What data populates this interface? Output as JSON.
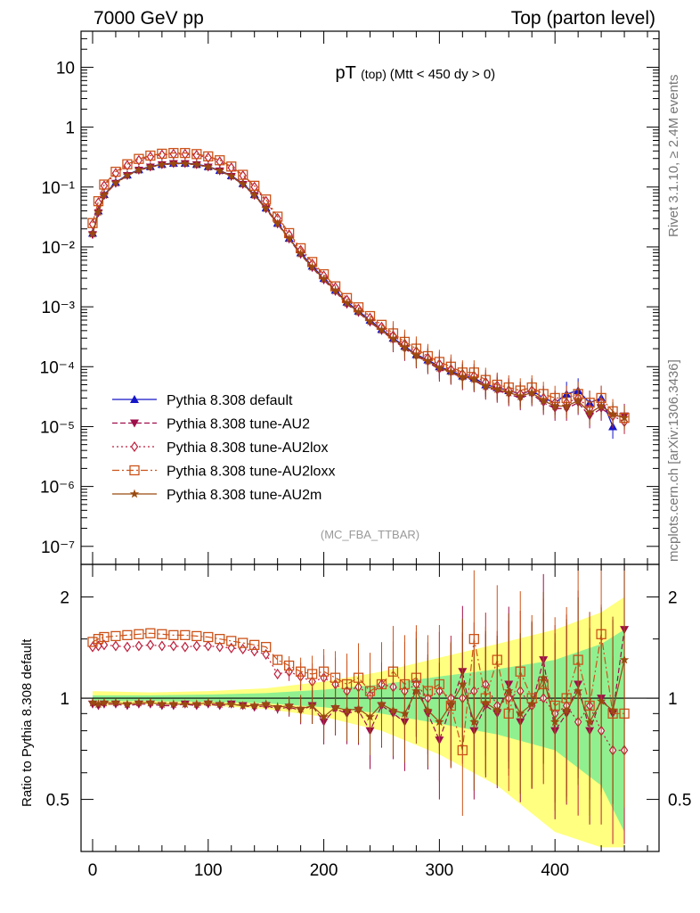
{
  "header": {
    "left": "7000 GeV pp",
    "right": "Top (parton level)"
  },
  "side_labels": {
    "rivet": "Rivet 3.1.10, ≥ 2.4M events",
    "mcplots": "mcplots.cern.ch [arXiv:1306.3436]"
  },
  "colors": {
    "default": "#1515c8",
    "AU2": "#9e0e4a",
    "AU2lox": "#bd1e3c",
    "AU2loxx": "#cc5319",
    "AU2m": "#9a4a10",
    "band_yellow": "#ffff80",
    "band_green": "#90f090"
  },
  "chart_data": [
    {
      "type": "line",
      "title_main": "pT",
      "title_paren": "(top)",
      "title_cond": "(Mtt < 450 dy > 0)",
      "watermark": "(MC_FBA_TTBAR)",
      "y_scale": "log",
      "ylim": [
        5e-08,
        40
      ],
      "xlim": [
        -10,
        490
      ],
      "y_ticks": [
        "10",
        "1",
        "10⁻¹",
        "10⁻²",
        "10⁻³",
        "10⁻⁴",
        "10⁻⁵",
        "10⁻⁶",
        "10⁻⁷"
      ],
      "legend": {
        "position": "bottom-left",
        "entries": [
          {
            "key": "default",
            "label": "Pythia 8.308 default",
            "marker": "triangle-up",
            "dash": "solid"
          },
          {
            "key": "AU2",
            "label": "Pythia 8.308 tune-AU2",
            "marker": "triangle-down",
            "dash": "dashed"
          },
          {
            "key": "AU2lox",
            "label": "Pythia 8.308 tune-AU2lox",
            "marker": "diamond",
            "dash": "dotted"
          },
          {
            "key": "AU2loxx",
            "label": "Pythia 8.308 tune-AU2loxx",
            "marker": "square",
            "dash": "dashdot"
          },
          {
            "key": "AU2m",
            "label": "Pythia 8.308 tune-AU2m",
            "marker": "star",
            "dash": "solid"
          }
        ]
      },
      "x": [
        0,
        5,
        10,
        20,
        30,
        40,
        50,
        60,
        70,
        80,
        90,
        100,
        110,
        120,
        130,
        140,
        150,
        160,
        170,
        180,
        190,
        200,
        210,
        220,
        230,
        240,
        250,
        260,
        270,
        280,
        290,
        300,
        310,
        320,
        330,
        340,
        350,
        360,
        370,
        380,
        390,
        400,
        410,
        420,
        430,
        440,
        450,
        460
      ],
      "series": [
        {
          "name": "Pythia 8.308 default",
          "key": "default",
          "values": [
            0.017,
            0.04,
            0.075,
            0.12,
            0.16,
            0.195,
            0.22,
            0.24,
            0.25,
            0.25,
            0.24,
            0.22,
            0.19,
            0.155,
            0.115,
            0.075,
            0.045,
            0.025,
            0.014,
            0.008,
            0.0048,
            0.003,
            0.0019,
            0.0012,
            0.00085,
            0.0006,
            0.00042,
            0.0003,
            0.00022,
            0.00016,
            0.00013,
            0.0001,
            8.5e-05,
            7e-05,
            6.5e-05,
            5e-05,
            4.5e-05,
            4e-05,
            3.5e-05,
            4e-05,
            3e-05,
            2.5e-05,
            3.5e-05,
            4e-05,
            2.5e-05,
            3e-05,
            1e-05,
            null
          ]
        },
        {
          "name": "Pythia 8.308 tune-AU2",
          "key": "AU2",
          "values": [
            0.016,
            0.037,
            0.072,
            0.115,
            0.155,
            0.19,
            0.215,
            0.235,
            0.245,
            0.245,
            0.235,
            0.215,
            0.185,
            0.15,
            0.11,
            0.072,
            0.043,
            0.024,
            0.0135,
            0.0075,
            0.0045,
            0.0028,
            0.0018,
            0.0011,
            0.0008,
            0.00055,
            0.0004,
            0.00028,
            0.0002,
            0.00015,
            0.00012,
            9e-05,
            8e-05,
            6.5e-05,
            6e-05,
            4.5e-05,
            4e-05,
            3.5e-05,
            3e-05,
            3.5e-05,
            2.5e-05,
            2e-05,
            2e-05,
            2.5e-05,
            1.5e-05,
            2e-05,
            1.5e-05,
            1.5e-05
          ]
        },
        {
          "name": "Pythia 8.308 tune-AU2lox",
          "key": "AU2lox",
          "values": [
            0.024,
            0.055,
            0.105,
            0.17,
            0.23,
            0.28,
            0.32,
            0.345,
            0.355,
            0.355,
            0.34,
            0.31,
            0.265,
            0.21,
            0.155,
            0.1,
            0.058,
            0.03,
            0.016,
            0.0088,
            0.0052,
            0.0033,
            0.0021,
            0.0013,
            0.00092,
            0.00065,
            0.00046,
            0.00033,
            0.00024,
            0.00018,
            0.00014,
            0.00011,
            9e-05,
            7.5e-05,
            7e-05,
            5.5e-05,
            4.8e-05,
            4e-05,
            3.5e-05,
            4e-05,
            3e-05,
            2.5e-05,
            2.5e-05,
            3e-05,
            2e-05,
            2.5e-05,
            1.5e-05,
            1.2e-05
          ]
        },
        {
          "name": "Pythia 8.308 tune-AU2loxx",
          "key": "AU2loxx",
          "values": [
            0.025,
            0.058,
            0.11,
            0.18,
            0.24,
            0.295,
            0.335,
            0.36,
            0.37,
            0.37,
            0.355,
            0.325,
            0.28,
            0.22,
            0.16,
            0.105,
            0.062,
            0.032,
            0.017,
            0.0095,
            0.0056,
            0.0035,
            0.0022,
            0.0014,
            0.00098,
            0.0007,
            0.0005,
            0.00036,
            0.00026,
            0.0002,
            0.00015,
            0.00012,
            0.0001,
            8e-05,
            8e-05,
            6e-05,
            5e-05,
            4.5e-05,
            4e-05,
            4.5e-05,
            3.5e-05,
            3e-05,
            3e-05,
            3.5e-05,
            2.5e-05,
            3e-05,
            1.8e-05,
            1.4e-05
          ]
        },
        {
          "name": "Pythia 8.308 tune-AU2m",
          "key": "AU2m",
          "values": [
            0.0165,
            0.038,
            0.073,
            0.117,
            0.157,
            0.192,
            0.217,
            0.237,
            0.247,
            0.247,
            0.237,
            0.217,
            0.187,
            0.152,
            0.112,
            0.073,
            0.044,
            0.0245,
            0.0138,
            0.0077,
            0.0046,
            0.0029,
            0.00185,
            0.00115,
            0.00082,
            0.00057,
            0.00041,
            0.00029,
            0.00021,
            0.000155,
            0.000125,
            9.5e-05,
            8.2e-05,
            6.8e-05,
            6.2e-05,
            4.7e-05,
            4.2e-05,
            3.7e-05,
            3.2e-05,
            3.7e-05,
            2.7e-05,
            2.2e-05,
            2.2e-05,
            2.7e-05,
            1.7e-05,
            2.2e-05,
            1.6e-05,
            1.4e-05
          ]
        }
      ]
    },
    {
      "type": "line",
      "ylabel": "Ratio to Pythia 8.308 default",
      "y_scale": "log",
      "ylim": [
        0.35,
        2.5
      ],
      "xlim": [
        -10,
        490
      ],
      "y_ticks": [
        "2",
        "1",
        "0.5"
      ],
      "x_ticks": [
        "0",
        "100",
        "200",
        "300",
        "400"
      ],
      "reference_line": 1,
      "band": {
        "x": [
          0,
          50,
          100,
          150,
          200,
          250,
          300,
          350,
          400,
          440,
          460
        ],
        "yellow_half_width": [
          0.05,
          0.04,
          0.05,
          0.07,
          0.12,
          0.2,
          0.32,
          0.45,
          0.6,
          0.8,
          1.0
        ],
        "green_half_width": [
          0.02,
          0.02,
          0.025,
          0.035,
          0.06,
          0.1,
          0.16,
          0.22,
          0.3,
          0.45,
          0.6
        ]
      },
      "x": [
        0,
        5,
        10,
        20,
        30,
        40,
        50,
        60,
        70,
        80,
        90,
        100,
        110,
        120,
        130,
        140,
        150,
        160,
        170,
        180,
        190,
        200,
        210,
        220,
        230,
        240,
        250,
        260,
        270,
        280,
        290,
        300,
        310,
        320,
        330,
        340,
        350,
        360,
        370,
        380,
        390,
        400,
        410,
        420,
        430,
        440,
        450,
        460
      ],
      "series": [
        {
          "name": "Pythia 8.308 tune-AU2",
          "key": "AU2",
          "values": [
            0.96,
            0.95,
            0.96,
            0.96,
            0.95,
            0.96,
            0.96,
            0.95,
            0.95,
            0.96,
            0.95,
            0.96,
            0.95,
            0.96,
            0.95,
            0.94,
            0.95,
            0.93,
            0.94,
            0.92,
            0.95,
            0.85,
            0.93,
            0.9,
            0.92,
            0.8,
            0.95,
            0.9,
            0.85,
            1.1,
            0.9,
            0.75,
            0.95,
            1.2,
            0.8,
            0.95,
            0.9,
            1.1,
            0.85,
            0.95,
            1.3,
            0.8,
            0.9,
            1.1,
            0.8,
            1.0,
            0.9,
            1.6
          ]
        },
        {
          "name": "Pythia 8.308 tune-AU2lox",
          "key": "AU2lox",
          "values": [
            1.42,
            1.43,
            1.44,
            1.43,
            1.42,
            1.43,
            1.44,
            1.43,
            1.43,
            1.42,
            1.43,
            1.43,
            1.42,
            1.41,
            1.4,
            1.38,
            1.35,
            1.18,
            1.2,
            1.16,
            1.12,
            1.15,
            1.1,
            1.05,
            1.08,
            1.02,
            1.1,
            1.08,
            1.05,
            1.1,
            1.0,
            1.05,
            1.0,
            1.0,
            1.05,
            1.1,
            0.95,
            1.0,
            1.05,
            0.95,
            1.0,
            0.9,
            0.95,
            0.85,
            0.95,
            0.8,
            0.7,
            0.7
          ]
        },
        {
          "name": "Pythia 8.308 tune-AU2loxx",
          "key": "AU2loxx",
          "values": [
            1.47,
            1.5,
            1.52,
            1.53,
            1.54,
            1.55,
            1.56,
            1.55,
            1.54,
            1.54,
            1.53,
            1.52,
            1.5,
            1.48,
            1.46,
            1.44,
            1.42,
            1.3,
            1.25,
            1.2,
            1.18,
            1.2,
            1.15,
            1.1,
            1.15,
            1.05,
            1.1,
            1.2,
            1.1,
            1.15,
            1.05,
            1.1,
            0.95,
            0.7,
            1.5,
            1.0,
            1.3,
            0.9,
            1.2,
            1.0,
            1.1,
            0.95,
            1.0,
            1.3,
            0.95,
            1.55,
            0.9,
            0.9
          ]
        },
        {
          "name": "Pythia 8.308 tune-AU2m",
          "key": "AU2m",
          "values": [
            0.97,
            0.96,
            0.97,
            0.97,
            0.96,
            0.97,
            0.97,
            0.96,
            0.96,
            0.96,
            0.96,
            0.97,
            0.96,
            0.96,
            0.95,
            0.95,
            0.96,
            0.94,
            0.95,
            0.93,
            0.95,
            0.88,
            0.94,
            0.92,
            0.93,
            0.88,
            0.96,
            0.92,
            0.9,
            1.05,
            0.92,
            0.85,
            0.96,
            1.1,
            0.85,
            0.97,
            0.92,
            1.05,
            0.9,
            0.96,
            1.15,
            0.85,
            0.92,
            1.05,
            0.85,
            0.98,
            0.92,
            1.3
          ]
        }
      ]
    }
  ]
}
